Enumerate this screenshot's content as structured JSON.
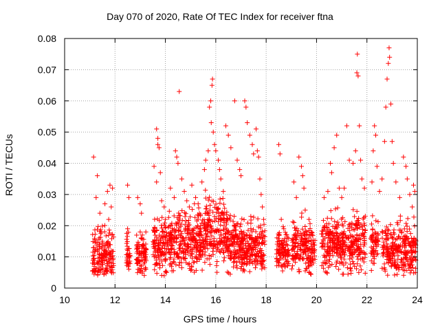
{
  "chart_data": {
    "type": "scatter",
    "title": "Day 070 of 2020, Rate Of TEC Index for receiver ftna",
    "xlabel": "GPS time / hours",
    "ylabel": "ROTI / TECUs",
    "xlim": [
      10,
      24
    ],
    "ylim": [
      0,
      0.08
    ],
    "x_ticks": [
      10,
      12,
      14,
      16,
      18,
      20,
      22,
      24
    ],
    "y_ticks": [
      0,
      0.01,
      0.02,
      0.03,
      0.04,
      0.05,
      0.06,
      0.07,
      0.08
    ],
    "x_tick_labels": [
      "10",
      "12",
      "14",
      "16",
      "18",
      "20",
      "22",
      "24"
    ],
    "y_tick_labels": [
      "0",
      "0.01",
      "0.02",
      "0.03",
      "0.04",
      "0.05",
      "0.06",
      "0.07",
      "0.08"
    ],
    "grid": true,
    "marker": "+",
    "color": "#ff0000",
    "series": [
      {
        "points": [
          [
            11.15,
            0.042
          ],
          [
            11.25,
            0.029
          ],
          [
            11.3,
            0.036
          ],
          [
            11.4,
            0.024
          ],
          [
            11.6,
            0.027
          ],
          [
            11.7,
            0.031
          ],
          [
            11.8,
            0.033
          ],
          [
            11.9,
            0.032
          ],
          [
            11.85,
            0.026
          ],
          [
            11.75,
            0.022
          ],
          [
            12.5,
            0.033
          ],
          [
            12.55,
            0.029
          ],
          [
            12.5,
            0.019
          ],
          [
            12.5,
            0.012
          ],
          [
            12.5,
            0.008
          ],
          [
            12.9,
            0.029
          ],
          [
            13.0,
            0.027
          ],
          [
            13.05,
            0.024
          ],
          [
            13.0,
            0.018
          ],
          [
            13.1,
            0.009
          ],
          [
            12.95,
            0.006
          ],
          [
            13.55,
            0.039
          ],
          [
            13.65,
            0.051
          ],
          [
            13.7,
            0.048
          ],
          [
            13.7,
            0.046
          ],
          [
            13.75,
            0.045
          ],
          [
            13.8,
            0.037
          ],
          [
            13.65,
            0.034
          ],
          [
            13.85,
            0.028
          ],
          [
            13.95,
            0.026
          ],
          [
            14.0,
            0.022
          ],
          [
            14.05,
            0.005
          ],
          [
            13.95,
            0.004
          ],
          [
            14.2,
            0.032
          ],
          [
            14.35,
            0.029
          ],
          [
            14.4,
            0.044
          ],
          [
            14.45,
            0.042
          ],
          [
            14.5,
            0.04
          ],
          [
            14.55,
            0.063
          ],
          [
            14.65,
            0.035
          ],
          [
            14.75,
            0.031
          ],
          [
            14.85,
            0.028
          ],
          [
            14.95,
            0.026
          ],
          [
            15.05,
            0.033
          ],
          [
            15.2,
            0.029
          ],
          [
            15.3,
            0.027
          ],
          [
            15.35,
            0.024
          ],
          [
            15.45,
            0.034
          ],
          [
            15.55,
            0.038
          ],
          [
            15.6,
            0.041
          ],
          [
            15.7,
            0.044
          ],
          [
            15.75,
            0.058
          ],
          [
            15.8,
            0.06
          ],
          [
            15.85,
            0.065
          ],
          [
            15.87,
            0.067
          ],
          [
            15.82,
            0.053
          ],
          [
            15.9,
            0.05
          ],
          [
            15.95,
            0.046
          ],
          [
            16.0,
            0.044
          ],
          [
            16.1,
            0.041
          ],
          [
            16.15,
            0.038
          ],
          [
            16.2,
            0.035
          ],
          [
            16.3,
            0.031
          ],
          [
            16.4,
            0.052
          ],
          [
            16.5,
            0.049
          ],
          [
            16.6,
            0.045
          ],
          [
            16.75,
            0.06
          ],
          [
            16.85,
            0.041
          ],
          [
            16.95,
            0.038
          ],
          [
            17.0,
            0.036
          ],
          [
            17.15,
            0.06
          ],
          [
            17.2,
            0.058
          ],
          [
            17.25,
            0.053
          ],
          [
            17.35,
            0.049
          ],
          [
            17.45,
            0.046
          ],
          [
            17.5,
            0.043
          ],
          [
            17.6,
            0.051
          ],
          [
            17.65,
            0.044
          ],
          [
            17.7,
            0.042
          ],
          [
            17.75,
            0.035
          ],
          [
            17.8,
            0.03
          ],
          [
            17.85,
            0.026
          ],
          [
            17.9,
            0.022
          ],
          [
            18.5,
            0.046
          ],
          [
            18.55,
            0.043
          ],
          [
            18.6,
            0.022
          ],
          [
            18.7,
            0.019
          ],
          [
            18.8,
            0.015
          ],
          [
            18.9,
            0.011
          ],
          [
            19.1,
            0.034
          ],
          [
            19.2,
            0.029
          ],
          [
            19.3,
            0.042
          ],
          [
            19.4,
            0.039
          ],
          [
            19.45,
            0.036
          ],
          [
            19.5,
            0.032
          ],
          [
            19.55,
            0.025
          ],
          [
            19.7,
            0.022
          ],
          [
            19.8,
            0.018
          ],
          [
            20.3,
            0.029
          ],
          [
            20.45,
            0.031
          ],
          [
            20.55,
            0.04
          ],
          [
            20.6,
            0.037
          ],
          [
            20.7,
            0.045
          ],
          [
            20.8,
            0.049
          ],
          [
            20.9,
            0.032
          ],
          [
            21.0,
            0.029
          ],
          [
            21.1,
            0.032
          ],
          [
            21.2,
            0.052
          ],
          [
            21.3,
            0.041
          ],
          [
            21.45,
            0.04
          ],
          [
            21.55,
            0.044
          ],
          [
            21.6,
            0.069
          ],
          [
            21.62,
            0.075
          ],
          [
            21.65,
            0.068
          ],
          [
            21.7,
            0.052
          ],
          [
            21.75,
            0.041
          ],
          [
            21.8,
            0.035
          ],
          [
            21.9,
            0.032
          ],
          [
            22.2,
            0.034
          ],
          [
            22.25,
            0.044
          ],
          [
            22.3,
            0.052
          ],
          [
            22.35,
            0.049
          ],
          [
            22.4,
            0.039
          ],
          [
            22.5,
            0.031
          ],
          [
            22.6,
            0.035
          ],
          [
            22.7,
            0.047
          ],
          [
            22.75,
            0.058
          ],
          [
            22.8,
            0.067
          ],
          [
            22.85,
            0.072
          ],
          [
            22.88,
            0.077
          ],
          [
            22.9,
            0.074
          ],
          [
            22.95,
            0.059
          ],
          [
            23.0,
            0.047
          ],
          [
            23.05,
            0.04
          ],
          [
            23.15,
            0.034
          ],
          [
            23.3,
            0.029
          ],
          [
            23.45,
            0.042
          ],
          [
            23.55,
            0.039
          ],
          [
            23.6,
            0.035
          ],
          [
            23.7,
            0.03
          ],
          [
            23.8,
            0.026
          ],
          [
            23.85,
            0.033
          ],
          [
            23.9,
            0.031
          ]
        ]
      }
    ],
    "clusters": [
      [
        11.1,
        11.95,
        0.011,
        0.0075
      ],
      [
        12.45,
        12.6,
        0.011,
        0.0055
      ],
      [
        12.85,
        13.25,
        0.011,
        0.0055
      ],
      [
        13.5,
        14.1,
        0.014,
        0.0075
      ],
      [
        14.1,
        14.95,
        0.015,
        0.0085
      ],
      [
        14.95,
        15.55,
        0.015,
        0.0085
      ],
      [
        15.55,
        16.45,
        0.018,
        0.0095
      ],
      [
        16.4,
        17.05,
        0.015,
        0.0085
      ],
      [
        17.0,
        17.95,
        0.013,
        0.0075
      ],
      [
        18.4,
        18.9,
        0.012,
        0.0055
      ],
      [
        19.0,
        19.6,
        0.014,
        0.0075
      ],
      [
        19.6,
        19.95,
        0.012,
        0.0065
      ],
      [
        20.2,
        20.95,
        0.014,
        0.0085
      ],
      [
        20.95,
        21.45,
        0.013,
        0.0075
      ],
      [
        21.45,
        21.95,
        0.015,
        0.0085
      ],
      [
        22.15,
        22.45,
        0.014,
        0.0075
      ],
      [
        22.6,
        23.2,
        0.012,
        0.0075
      ],
      [
        23.2,
        23.95,
        0.013,
        0.0075
      ]
    ]
  }
}
